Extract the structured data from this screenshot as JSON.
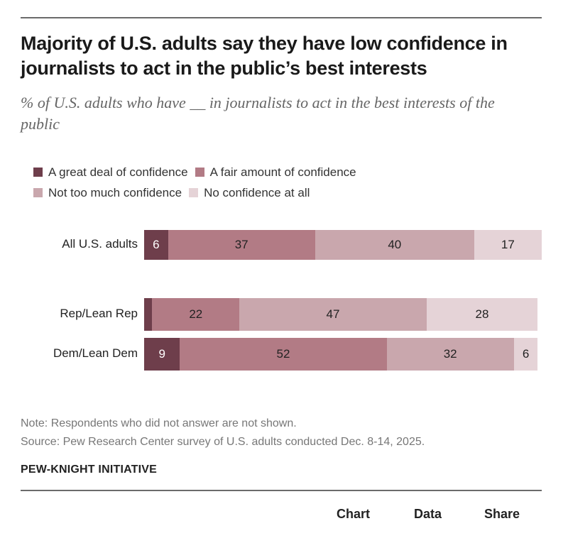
{
  "chart_data": {
    "type": "bar",
    "orientation": "horizontal",
    "stacked": true,
    "title": "Majority of U.S. adults say they have low confidence in journalists to act in the public’s best interests",
    "subtitle": "% of U.S. adults who have __ in journalists to act in the best interests of the public",
    "categories": [
      "All U.S. adults",
      "Rep/Lean Rep",
      "Dem/Lean Dem"
    ],
    "series": [
      {
        "name": "A great deal of confidence",
        "color": "#6e3e4b",
        "values": [
          6,
          2,
          9
        ],
        "labels": [
          "6",
          "",
          "9"
        ],
        "label_color": "#ffffff"
      },
      {
        "name": "A fair amount of confidence",
        "color": "#b27b85",
        "values": [
          37,
          22,
          52
        ],
        "labels": [
          "37",
          "22",
          "52"
        ],
        "label_color": "#222222"
      },
      {
        "name": "Not too much confidence",
        "color": "#c9a7ad",
        "values": [
          40,
          47,
          32
        ],
        "labels": [
          "40",
          "47",
          "32"
        ],
        "label_color": "#222222"
      },
      {
        "name": "No confidence at all",
        "color": "#e5d3d7",
        "values": [
          17,
          28,
          6
        ],
        "labels": [
          "17",
          "28",
          "6"
        ],
        "label_color": "#222222"
      }
    ],
    "xlim": [
      0,
      100
    ],
    "grid": false,
    "legend_position": "top-left",
    "xlabel": "",
    "ylabel": ""
  },
  "legend_rows": [
    [
      0,
      1
    ],
    [
      2,
      3
    ]
  ],
  "footer": {
    "note": "Note: Respondents who did not answer are not shown.",
    "source": "Source: Pew Research Center survey of U.S. adults conducted Dec. 8-14, 2025.",
    "org": "PEW-KNIGHT INITIATIVE"
  },
  "tabs": {
    "chart": "Chart",
    "data": "Data",
    "share": "Share"
  }
}
